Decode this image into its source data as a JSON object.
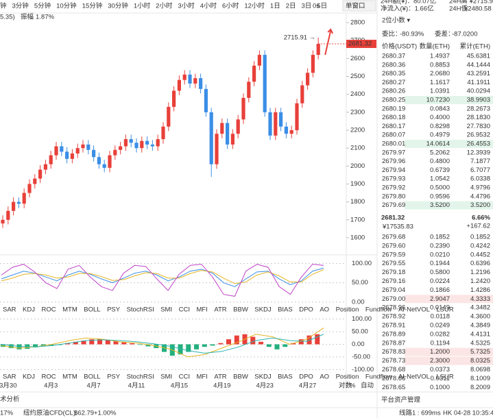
{
  "toolbar": {
    "intervals": [
      "钟",
      "3分钟",
      "5分钟",
      "10分钟",
      "15分钟",
      "30分钟",
      "1小时",
      "2小时",
      "3小时",
      "4小时",
      "6小时",
      "12小时",
      "1日",
      "2日",
      "3日",
      "5日"
    ],
    "selected": "4小时",
    "right": [
      "0s",
      "单窗口"
    ]
  },
  "info": {
    "prefix": "5.35)",
    "amp_label": "振幅",
    "amp": "1.87%"
  },
  "chart_data": {
    "type": "candlestick",
    "up_color": "#e8403a",
    "down_color": "#3a8ee6",
    "categories": [
      null,
      "3月30",
      null,
      null,
      null,
      null,
      null,
      null,
      null,
      "4月3",
      null,
      null,
      null,
      null,
      null,
      null,
      null,
      "4月7",
      null,
      null,
      null,
      null,
      null,
      null,
      null,
      "4月11",
      null,
      null,
      null,
      null,
      null,
      null,
      null,
      "4月15",
      null,
      null,
      null,
      null,
      null,
      null,
      null,
      "4月19",
      null,
      null,
      null,
      null,
      null,
      null,
      null,
      "4月23",
      null,
      null,
      null,
      null,
      null,
      null,
      null,
      "4月27",
      null,
      null
    ],
    "open": [
      1680,
      1700,
      1750,
      1800,
      1790,
      1850,
      1900,
      1930,
      1980,
      2010,
      2060,
      2110,
      2080,
      2040,
      2070,
      2100,
      2120,
      2090,
      2050,
      2010,
      1990,
      2060,
      2090,
      2110,
      2150,
      2130,
      2100,
      2140,
      2120,
      2110,
      2150,
      2220,
      2330,
      2420,
      2480,
      2510,
      2460,
      2490,
      2430,
      2300,
      2010,
      2180,
      2240,
      2120,
      2180,
      2260,
      2380,
      2470,
      2560,
      2620,
      2300,
      2170,
      2300,
      2220,
      2180,
      2200,
      2350,
      2450,
      2520,
      2620
    ],
    "high": [
      1725,
      1775,
      1825,
      1825,
      1875,
      1925,
      1955,
      2005,
      2035,
      2085,
      2135,
      2135,
      2105,
      2095,
      2125,
      2145,
      2145,
      2115,
      2075,
      2035,
      2085,
      2115,
      2135,
      2175,
      2175,
      2155,
      2165,
      2165,
      2145,
      2175,
      2245,
      2355,
      2445,
      2505,
      2535,
      2535,
      2515,
      2515,
      2455,
      2325,
      2205,
      2265,
      2265,
      2205,
      2285,
      2405,
      2495,
      2585,
      2645,
      2645,
      2325,
      2325,
      2325,
      2245,
      2225,
      2375,
      2475,
      2545,
      2645,
      2715.91
    ],
    "low": [
      1655,
      1675,
      1725,
      1765,
      1765,
      1825,
      1875,
      1905,
      1955,
      1985,
      2035,
      2055,
      2015,
      2015,
      2045,
      2075,
      2065,
      2025,
      1985,
      1965,
      1965,
      2035,
      2065,
      2085,
      2105,
      2075,
      2075,
      2095,
      2085,
      2085,
      2125,
      2195,
      2305,
      2395,
      2455,
      2435,
      2435,
      2405,
      2275,
      1940,
      1985,
      2155,
      2095,
      2095,
      2155,
      2235,
      2355,
      2445,
      2535,
      2275,
      2145,
      2145,
      2195,
      2155,
      2155,
      2175,
      2325,
      2425,
      2495,
      2595
    ],
    "close": [
      1700,
      1750,
      1800,
      1790,
      1850,
      1900,
      1930,
      1980,
      2010,
      2060,
      2110,
      2080,
      2040,
      2070,
      2100,
      2120,
      2090,
      2050,
      2010,
      1990,
      2060,
      2090,
      2110,
      2150,
      2130,
      2100,
      2140,
      2120,
      2110,
      2150,
      2220,
      2330,
      2420,
      2480,
      2510,
      2460,
      2490,
      2430,
      2300,
      2010,
      2180,
      2240,
      2120,
      2180,
      2260,
      2380,
      2470,
      2560,
      2620,
      2300,
      2170,
      2300,
      2220,
      2180,
      2200,
      2350,
      2450,
      2520,
      2620,
      2681.32
    ],
    "ylim": [
      1512,
      2926
    ],
    "yticks": [
      1600,
      1700,
      1800,
      1900,
      2000,
      2100,
      2200,
      2300,
      2400,
      2500,
      2600,
      2700,
      2800
    ],
    "last_price": {
      "value": 2681.32,
      "label": "2681.32"
    },
    "high_note": "2715.91 →"
  },
  "kdj": {
    "type": "line",
    "ylim": [
      -2,
      115
    ],
    "yticks": [
      {
        "value": 0,
        "label": "0.00"
      },
      {
        "value": 50,
        "label": "50.00"
      },
      {
        "value": 100,
        "label": "100.00"
      }
    ],
    "series": [
      {
        "color": "#3a8ee6",
        "values": [
          60,
          70,
          80,
          75,
          65,
          55,
          70,
          80,
          72,
          60,
          50,
          62,
          75,
          80,
          70,
          55,
          65,
          80,
          85,
          75,
          50,
          40,
          60,
          78,
          80,
          60,
          45,
          55,
          80,
          88
        ]
      },
      {
        "color": "#e6b422",
        "values": [
          55,
          62,
          72,
          74,
          70,
          62,
          65,
          74,
          74,
          66,
          56,
          58,
          68,
          76,
          74,
          62,
          62,
          74,
          82,
          78,
          62,
          48,
          52,
          70,
          78,
          68,
          52,
          52,
          72,
          84
        ]
      },
      {
        "color": "#c040c8",
        "values": [
          70,
          90,
          98,
          78,
          50,
          35,
          85,
          95,
          65,
          40,
          30,
          75,
          95,
          92,
          60,
          30,
          72,
          95,
          98,
          65,
          20,
          15,
          80,
          98,
          90,
          40,
          20,
          65,
          98,
          95
        ]
      }
    ]
  },
  "macd": {
    "type": "bar",
    "ylim": [
      -110,
      110
    ],
    "yticks": [
      {
        "value": -100,
        "label": "-100.00"
      },
      {
        "value": -50,
        "label": "-50.00"
      },
      {
        "value": 0,
        "label": "0.00"
      },
      {
        "value": 50,
        "label": "50.00"
      },
      {
        "value": 100,
        "label": "100.00"
      }
    ],
    "values": [
      -10,
      -15,
      -20,
      -18,
      -12,
      -8,
      -5,
      -3,
      5,
      10,
      15,
      20,
      22,
      18,
      12,
      8,
      4,
      -2,
      -8,
      -15,
      -30,
      -45,
      -40,
      -30,
      -20,
      -10,
      -5,
      5,
      20,
      35,
      40,
      30,
      10,
      -10,
      -20,
      -10,
      5,
      20,
      35,
      40
    ],
    "series": [
      {
        "color": "#e6b422",
        "values": [
          -5,
          -15,
          -10,
          0,
          15,
          25,
          20,
          10,
          5,
          -5,
          -20,
          -50,
          -40,
          -15,
          10,
          40,
          30,
          0,
          20,
          65
        ]
      },
      {
        "color": "#2bb3b0",
        "values": [
          0,
          -8,
          -10,
          -5,
          5,
          15,
          18,
          15,
          10,
          2,
          -8,
          -25,
          -35,
          -28,
          -10,
          15,
          25,
          15,
          12,
          40
        ]
      }
    ]
  },
  "tabs": [
    "SAR",
    "KDJ",
    "ROC",
    "MTM",
    "BOLL",
    "PSY",
    "StochRSI",
    "SMI",
    "CCI",
    "MFI",
    "ATR",
    "BBW",
    "SKDJ",
    "BIAS",
    "DPO",
    "AO",
    "Position",
    "Fundflow",
    "AI-NetVOL",
    "LSUR"
  ],
  "tab_selected": "KDJ",
  "axis_opts": [
    "对数",
    "%",
    "自动"
  ],
  "footer": {
    "section": "术分析",
    "pct": "17%",
    "ticker": "纽约原油CFD(CL):",
    "price": "$62.79",
    "change": "+1.00%",
    "line": "线路1 : 699ms",
    "time": "HK 04-28 10:35:44"
  },
  "panel": {
    "top1": "24H额(¥)：80.07亿",
    "top1r": "24H高 ¥2715.91",
    "top2": "净流入(¥)：1.66亿",
    "top2r_label": "24H低",
    "top2r": "¥2480.58",
    "decimals": "2位小数 ▾",
    "ratio_label": "委比：",
    "ratio": "-80.93%",
    "diff_label": "委差：",
    "diff": "-87.0200",
    "headers": [
      "价格(USDT)",
      "数量(ETH)",
      "累计(ETH)"
    ],
    "asks": [
      [
        "2680.37",
        "1.4937",
        "45.6381"
      ],
      [
        "2680.36",
        "0.8853",
        "44.1444"
      ],
      [
        "2680.35",
        "2.0680",
        "43.2591"
      ],
      [
        "2680.27",
        "1.1617",
        "41.1911"
      ],
      [
        "2680.26",
        "1.0391",
        "40.0294"
      ],
      [
        "2680.25",
        "10.7230",
        "38.9903"
      ],
      [
        "2680.19",
        "0.0843",
        "28.2673"
      ],
      [
        "2680.18",
        "0.4000",
        "28.1830"
      ],
      [
        "2680.17",
        "0.8298",
        "27.7830"
      ],
      [
        "2680.07",
        "0.4979",
        "26.9532"
      ],
      [
        "2680.01",
        "14.0614",
        "26.4553"
      ],
      [
        "2679.97",
        "5.2062",
        "12.3939"
      ],
      [
        "2679.96",
        "0.4800",
        "7.1877"
      ],
      [
        "2679.94",
        "0.6739",
        "6.7077"
      ],
      [
        "2679.93",
        "1.0542",
        "6.0338"
      ],
      [
        "2679.92",
        "0.5000",
        "4.9796"
      ],
      [
        "2679.80",
        "0.9596",
        "4.4796"
      ],
      [
        "2679.69",
        "3.5200",
        "3.5200"
      ]
    ],
    "ask_hl": [
      false,
      false,
      false,
      false,
      false,
      true,
      false,
      false,
      false,
      false,
      true,
      false,
      false,
      false,
      false,
      false,
      false,
      true
    ],
    "mid": "2681.32",
    "mid_pct": "6.66%",
    "mid_cny": "¥17535.83",
    "mid_chg": "+167.62",
    "bids": [
      [
        "2679.68",
        "0.1852",
        "0.1852"
      ],
      [
        "2679.60",
        "0.2390",
        "0.4242"
      ],
      [
        "2679.59",
        "0.0210",
        "0.4452"
      ],
      [
        "2679.55",
        "0.1944",
        "0.6396"
      ],
      [
        "2679.18",
        "0.5800",
        "1.2196"
      ],
      [
        "2679.16",
        "0.0224",
        "1.2420"
      ],
      [
        "2679.04",
        "0.1866",
        "1.4286"
      ],
      [
        "2679.00",
        "2.9047",
        "4.3333"
      ],
      [
        "2678.96",
        "0.0149",
        "4.3482"
      ],
      [
        "2678.92",
        "0.0118",
        "4.3600"
      ],
      [
        "2678.91",
        "0.0249",
        "4.3849"
      ],
      [
        "2678.89",
        "0.0282",
        "4.4131"
      ],
      [
        "2678.87",
        "0.1194",
        "4.5325"
      ],
      [
        "2678.83",
        "1.2000",
        "5.7325"
      ],
      [
        "2678.73",
        "2.3000",
        "8.0325"
      ],
      [
        "2678.68",
        "0.0373",
        "8.0698"
      ],
      [
        "2678.66",
        "0.0311",
        "8.1009"
      ],
      [
        "2678.65",
        "0.1000",
        "8.2009"
      ]
    ],
    "bid_hl": [
      false,
      false,
      false,
      false,
      false,
      false,
      false,
      true,
      false,
      false,
      false,
      false,
      false,
      true,
      true,
      false,
      false,
      false
    ],
    "assets": "平台资产管理"
  }
}
